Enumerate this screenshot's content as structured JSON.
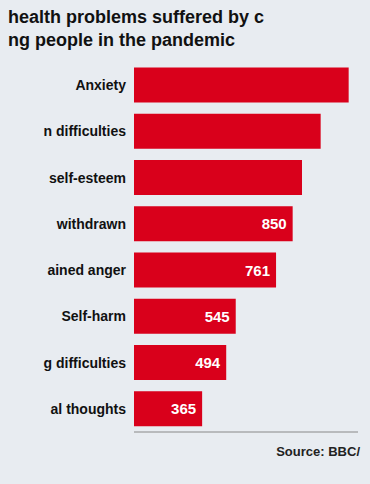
{
  "chart_data": {
    "type": "bar",
    "orientation": "horizontal",
    "title": "health problems suffered by c",
    "subtitle": "ng people in the pandemic",
    "annotations": [
      "Source: BBC/"
    ],
    "categories": [
      "Anxiety",
      "n difficulties",
      "self-esteem",
      "withdrawn",
      "ained anger",
      "Self-harm",
      "g difficulties",
      "al thoughts"
    ],
    "values": [
      1150,
      1000,
      900,
      850,
      761,
      545,
      494,
      365
    ],
    "value_labels": [
      null,
      null,
      null,
      "850",
      "761",
      "545",
      "494",
      "365"
    ],
    "data_labels": true,
    "color": "#d9001b",
    "xlim": [
      0,
      1200
    ],
    "tick_labels": "y",
    "grid": false
  }
}
